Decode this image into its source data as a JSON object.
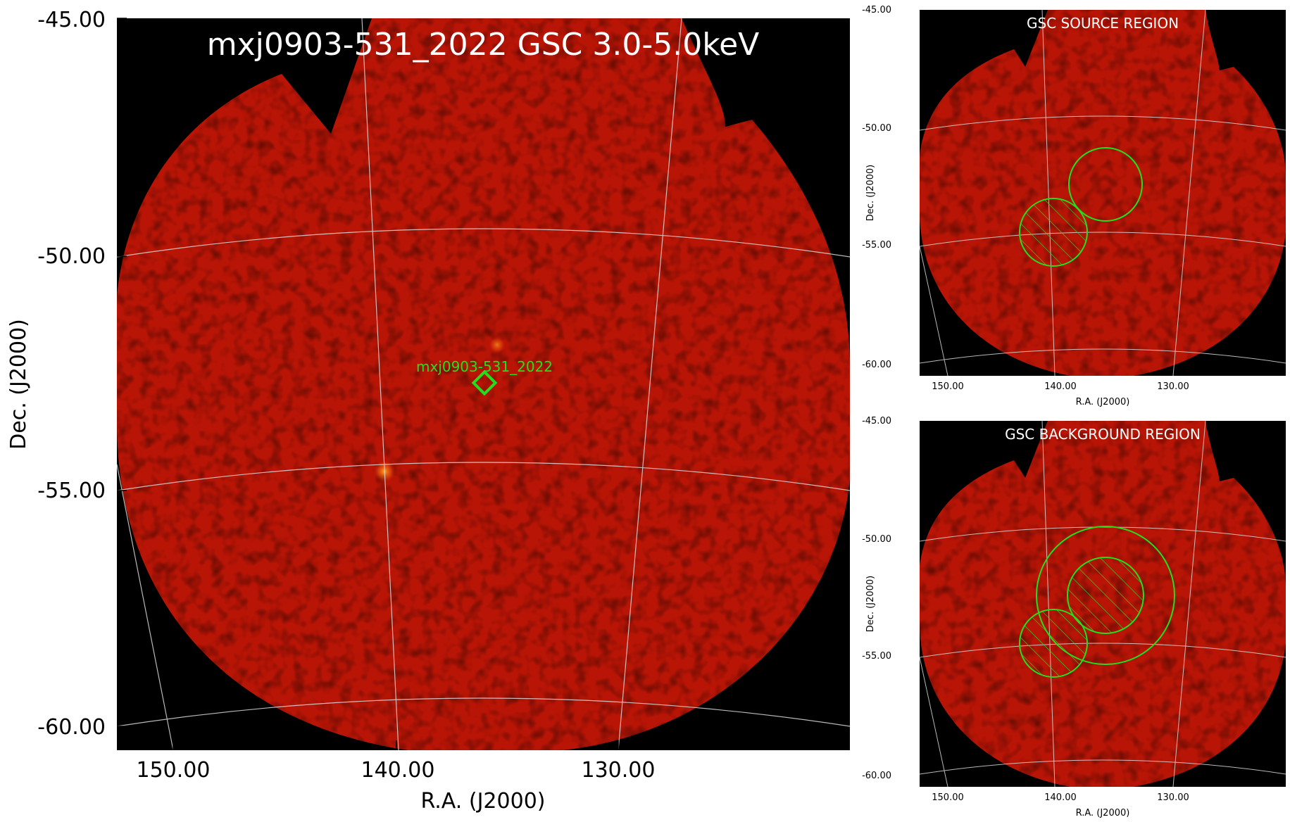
{
  "main_panel": {
    "title": "mxj0903-531_2022 GSC 3.0-5.0keV",
    "source_label": "mxj0903-531_2022",
    "x_axis_label": "R.A. (J2000)",
    "y_axis_label": "Dec. (J2000)",
    "x_ticks": [
      "150.00",
      "140.00",
      "130.00"
    ],
    "y_ticks": [
      "-45.00",
      "-50.00",
      "-55.00",
      "-60.00"
    ]
  },
  "source_panel": {
    "title": "GSC SOURCE REGION",
    "x_axis_label": "R.A. (J2000)",
    "y_axis_label": "Dec. (J2000)",
    "x_ticks": [
      "150.00",
      "140.00",
      "130.00"
    ],
    "y_ticks": [
      "-45.00",
      "-50.00",
      "-55.00",
      "-60.00"
    ]
  },
  "background_panel": {
    "title": "GSC BACKGROUND REGION",
    "x_axis_label": "R.A. (J2000)",
    "y_axis_label": "Dec. (J2000)",
    "x_ticks": [
      "150.00",
      "140.00",
      "130.00"
    ],
    "y_ticks": [
      "-45.00",
      "-50.00",
      "-55.00",
      "-60.00"
    ]
  },
  "colors": {
    "background": "#000000",
    "sky_map": "#b81506",
    "region": "#22e01a",
    "grid": "#d9d9d9"
  }
}
